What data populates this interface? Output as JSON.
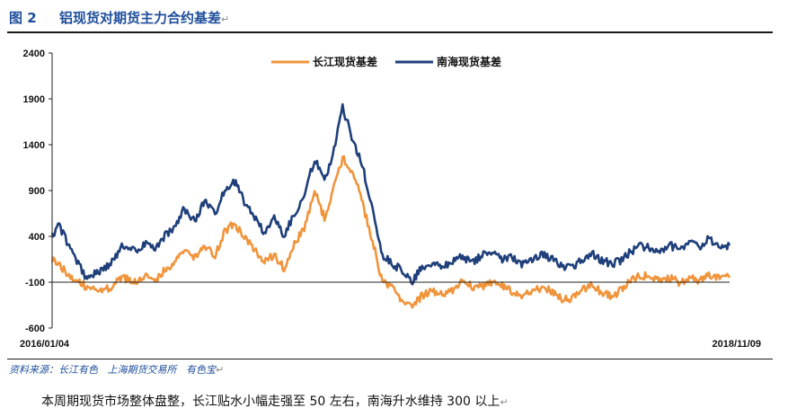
{
  "figure": {
    "label": "图 2",
    "title": "铝现货对期货主力合约基差",
    "mark": "↵"
  },
  "source": "资料来源：长江有色   上海期货交易所   有色宝",
  "caption": "本周期现货市场整体盘整，长江贴水小幅走强至 50 左右，南海升水维持 300 以上",
  "colors": {
    "changjiang": "#f0943c",
    "nanhai": "#1f3f7a",
    "axis": "#222222"
  },
  "chart_data": {
    "type": "line",
    "title": "铝现货对期货主力合约基差",
    "xlabel": "",
    "ylabel": "",
    "ylim": [
      -600,
      2400
    ],
    "yticks": [
      -600,
      -100,
      400,
      900,
      1400,
      1900,
      2400
    ],
    "x_range": [
      "2016/01/04",
      "2018/11/09"
    ],
    "x_tick_labels": [
      "2016/01/04",
      "2018/11/09"
    ],
    "legend_position": "top-center",
    "grid": false,
    "series": [
      {
        "name": "长江现货基差",
        "color": "#f0943c",
        "points": [
          [
            "2016-01-04",
            150
          ],
          [
            "2016-01-20",
            50
          ],
          [
            "2016-02-05",
            -50
          ],
          [
            "2016-02-25",
            -150
          ],
          [
            "2016-03-15",
            -200
          ],
          [
            "2016-04-05",
            -150
          ],
          [
            "2016-04-20",
            -50
          ],
          [
            "2016-05-10",
            -100
          ],
          [
            "2016-05-25",
            -20
          ],
          [
            "2016-06-10",
            -80
          ],
          [
            "2016-06-25",
            40
          ],
          [
            "2016-07-10",
            100
          ],
          [
            "2016-07-25",
            250
          ],
          [
            "2016-08-10",
            180
          ],
          [
            "2016-08-25",
            300
          ],
          [
            "2016-09-10",
            200
          ],
          [
            "2016-09-25",
            450
          ],
          [
            "2016-10-10",
            550
          ],
          [
            "2016-10-25",
            380
          ],
          [
            "2016-11-10",
            250
          ],
          [
            "2016-11-25",
            120
          ],
          [
            "2016-12-10",
            200
          ],
          [
            "2016-12-25",
            50
          ],
          [
            "2017-01-10",
            320
          ],
          [
            "2017-01-25",
            480
          ],
          [
            "2017-02-10",
            900
          ],
          [
            "2017-02-25",
            600
          ],
          [
            "2017-03-10",
            900
          ],
          [
            "2017-03-25",
            1250
          ],
          [
            "2017-04-10",
            1100
          ],
          [
            "2017-04-25",
            750
          ],
          [
            "2017-05-10",
            350
          ],
          [
            "2017-05-25",
            -100
          ],
          [
            "2017-06-10",
            -150
          ],
          [
            "2017-06-25",
            -300
          ],
          [
            "2017-07-10",
            -350
          ],
          [
            "2017-07-25",
            -250
          ],
          [
            "2017-08-10",
            -200
          ],
          [
            "2017-08-25",
            -220
          ],
          [
            "2017-09-10",
            -180
          ],
          [
            "2017-09-25",
            -80
          ],
          [
            "2017-10-10",
            -150
          ],
          [
            "2017-10-25",
            -160
          ],
          [
            "2017-11-10",
            -100
          ],
          [
            "2017-11-25",
            -130
          ],
          [
            "2017-12-10",
            -200
          ],
          [
            "2017-12-25",
            -250
          ],
          [
            "2018-01-10",
            -220
          ],
          [
            "2018-01-25",
            -150
          ],
          [
            "2018-02-10",
            -200
          ],
          [
            "2018-02-25",
            -280
          ],
          [
            "2018-03-10",
            -300
          ],
          [
            "2018-03-25",
            -200
          ],
          [
            "2018-04-10",
            -120
          ],
          [
            "2018-04-25",
            -200
          ],
          [
            "2018-05-10",
            -250
          ],
          [
            "2018-05-25",
            -200
          ],
          [
            "2018-06-10",
            -80
          ],
          [
            "2018-06-25",
            -20
          ],
          [
            "2018-07-10",
            -50
          ],
          [
            "2018-07-25",
            -90
          ],
          [
            "2018-08-10",
            -60
          ],
          [
            "2018-08-25",
            -100
          ],
          [
            "2018-09-10",
            -60
          ],
          [
            "2018-09-25",
            -80
          ],
          [
            "2018-10-10",
            -20
          ],
          [
            "2018-10-25",
            -40
          ],
          [
            "2018-11-09",
            -50
          ]
        ]
      },
      {
        "name": "南海现货基差",
        "color": "#1f3f7a",
        "points": [
          [
            "2016-01-04",
            400
          ],
          [
            "2016-01-15",
            520
          ],
          [
            "2016-02-05",
            200
          ],
          [
            "2016-02-25",
            -50
          ],
          [
            "2016-03-15",
            0
          ],
          [
            "2016-04-05",
            120
          ],
          [
            "2016-04-20",
            300
          ],
          [
            "2016-05-10",
            250
          ],
          [
            "2016-05-25",
            320
          ],
          [
            "2016-06-10",
            280
          ],
          [
            "2016-06-25",
            400
          ],
          [
            "2016-07-10",
            500
          ],
          [
            "2016-07-25",
            700
          ],
          [
            "2016-08-10",
            560
          ],
          [
            "2016-08-25",
            800
          ],
          [
            "2016-09-10",
            650
          ],
          [
            "2016-09-25",
            900
          ],
          [
            "2016-10-10",
            1000
          ],
          [
            "2016-10-25",
            780
          ],
          [
            "2016-11-10",
            600
          ],
          [
            "2016-11-25",
            450
          ],
          [
            "2016-12-10",
            620
          ],
          [
            "2016-12-25",
            400
          ],
          [
            "2017-01-10",
            650
          ],
          [
            "2017-01-25",
            850
          ],
          [
            "2017-02-10",
            1250
          ],
          [
            "2017-02-25",
            1000
          ],
          [
            "2017-03-10",
            1300
          ],
          [
            "2017-03-25",
            1800
          ],
          [
            "2017-04-10",
            1450
          ],
          [
            "2017-04-25",
            1150
          ],
          [
            "2017-05-10",
            700
          ],
          [
            "2017-05-25",
            200
          ],
          [
            "2017-06-10",
            100
          ],
          [
            "2017-06-25",
            20
          ],
          [
            "2017-07-10",
            -80
          ],
          [
            "2017-07-25",
            60
          ],
          [
            "2017-08-10",
            90
          ],
          [
            "2017-08-25",
            60
          ],
          [
            "2017-09-10",
            120
          ],
          [
            "2017-09-25",
            180
          ],
          [
            "2017-10-10",
            120
          ],
          [
            "2017-10-25",
            200
          ],
          [
            "2017-11-10",
            250
          ],
          [
            "2017-11-25",
            150
          ],
          [
            "2017-12-10",
            180
          ],
          [
            "2017-12-25",
            100
          ],
          [
            "2018-01-10",
            130
          ],
          [
            "2018-01-25",
            200
          ],
          [
            "2018-02-10",
            150
          ],
          [
            "2018-02-25",
            80
          ],
          [
            "2018-03-10",
            50
          ],
          [
            "2018-03-25",
            130
          ],
          [
            "2018-04-10",
            220
          ],
          [
            "2018-04-25",
            150
          ],
          [
            "2018-05-10",
            100
          ],
          [
            "2018-05-25",
            130
          ],
          [
            "2018-06-10",
            230
          ],
          [
            "2018-06-25",
            300
          ],
          [
            "2018-07-10",
            270
          ],
          [
            "2018-07-25",
            230
          ],
          [
            "2018-08-10",
            300
          ],
          [
            "2018-08-25",
            260
          ],
          [
            "2018-09-10",
            330
          ],
          [
            "2018-09-25",
            300
          ],
          [
            "2018-10-10",
            380
          ],
          [
            "2018-10-25",
            270
          ],
          [
            "2018-11-09",
            300
          ]
        ]
      }
    ]
  }
}
